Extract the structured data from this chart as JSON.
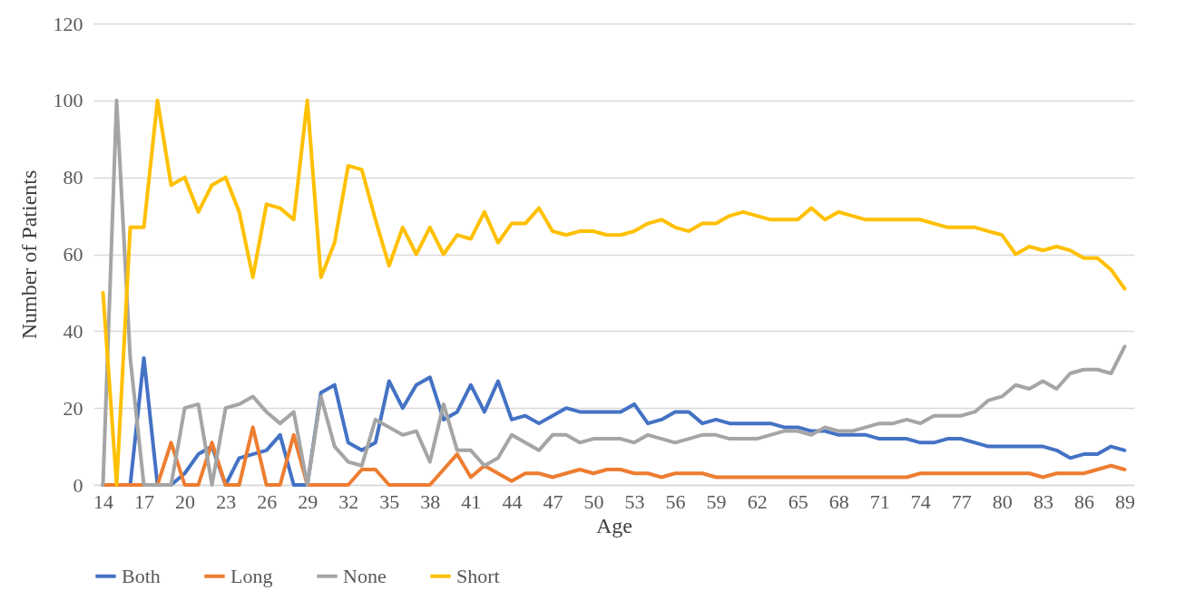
{
  "chart_data": {
    "type": "line",
    "xlabel": "Age",
    "ylabel": "Number of Patients",
    "categories": [
      "14",
      null,
      null,
      "17",
      null,
      null,
      "20",
      null,
      null,
      "23",
      null,
      null,
      "26",
      null,
      null,
      "29",
      null,
      null,
      "32",
      null,
      null,
      "35",
      null,
      null,
      "38",
      null,
      null,
      "41",
      null,
      null,
      "44",
      null,
      null,
      "47",
      null,
      null,
      "50",
      null,
      null,
      "53",
      null,
      null,
      "56",
      null,
      null,
      "59",
      null,
      null,
      "62",
      null,
      null,
      "65",
      null,
      null,
      "68",
      null,
      null,
      "71",
      null,
      null,
      "74",
      null,
      null,
      "77",
      null,
      null,
      "80",
      null,
      null,
      "83",
      null,
      null,
      "86",
      null,
      null,
      "89"
    ],
    "series": [
      {
        "name": "Both",
        "color": "#4472c4",
        "values": [
          0,
          0,
          0,
          33,
          0,
          0,
          3,
          8,
          10,
          0,
          7,
          8,
          9,
          13,
          0,
          0,
          24,
          26,
          11,
          9,
          11,
          27,
          20,
          26,
          28,
          17,
          19,
          26,
          19,
          27,
          17,
          18,
          16,
          18,
          20,
          19,
          19,
          19,
          19,
          21,
          16,
          17,
          19,
          19,
          16,
          17,
          16,
          16,
          16,
          16,
          15,
          15,
          14,
          14,
          13,
          13,
          13,
          12,
          12,
          12,
          11,
          11,
          12,
          12,
          11,
          10,
          10,
          10,
          10,
          10,
          9,
          7,
          8,
          8,
          10,
          9
        ]
      },
      {
        "name": "Long",
        "color": "#ed7d31",
        "values": [
          0,
          0,
          0,
          0,
          0,
          11,
          0,
          0,
          11,
          0,
          0,
          15,
          0,
          0,
          13,
          0,
          0,
          0,
          0,
          4,
          4,
          0,
          0,
          0,
          0,
          4,
          8,
          2,
          5,
          3,
          1,
          3,
          3,
          2,
          3,
          4,
          3,
          4,
          4,
          3,
          3,
          2,
          3,
          3,
          3,
          2,
          2,
          2,
          2,
          2,
          2,
          2,
          2,
          2,
          2,
          2,
          2,
          2,
          2,
          2,
          3,
          3,
          3,
          3,
          3,
          3,
          3,
          3,
          3,
          2,
          3,
          3,
          3,
          4,
          5,
          4
        ]
      },
      {
        "name": "None",
        "color": "#a5a5a5",
        "values": [
          0,
          100,
          33,
          0,
          0,
          0,
          20,
          21,
          0,
          20,
          21,
          23,
          19,
          16,
          19,
          0,
          23,
          10,
          6,
          5,
          17,
          15,
          13,
          14,
          6,
          21,
          9,
          9,
          5,
          7,
          13,
          11,
          9,
          13,
          13,
          11,
          12,
          12,
          12,
          11,
          13,
          12,
          11,
          12,
          13,
          13,
          12,
          12,
          12,
          13,
          14,
          14,
          13,
          15,
          14,
          14,
          15,
          16,
          16,
          17,
          16,
          18,
          18,
          18,
          19,
          22,
          23,
          26,
          25,
          27,
          25,
          29,
          30,
          30,
          29,
          36
        ]
      },
      {
        "name": "Short",
        "color": "#ffc000",
        "values": [
          50,
          0,
          67,
          67,
          100,
          78,
          80,
          71,
          78,
          80,
          71,
          54,
          73,
          72,
          69,
          100,
          54,
          63,
          83,
          82,
          69,
          57,
          67,
          60,
          67,
          60,
          65,
          64,
          71,
          63,
          68,
          68,
          72,
          66,
          65,
          66,
          66,
          65,
          65,
          66,
          68,
          69,
          67,
          66,
          68,
          68,
          70,
          71,
          70,
          69,
          69,
          69,
          72,
          69,
          71,
          70,
          69,
          69,
          69,
          69,
          69,
          68,
          67,
          67,
          67,
          66,
          65,
          60,
          62,
          61,
          62,
          61,
          59,
          59,
          56,
          51
        ]
      }
    ],
    "ylim": [
      0,
      120
    ],
    "yticks": [
      0,
      20,
      40,
      60,
      80,
      100,
      120
    ],
    "grid": "y",
    "legend": "bottom"
  }
}
